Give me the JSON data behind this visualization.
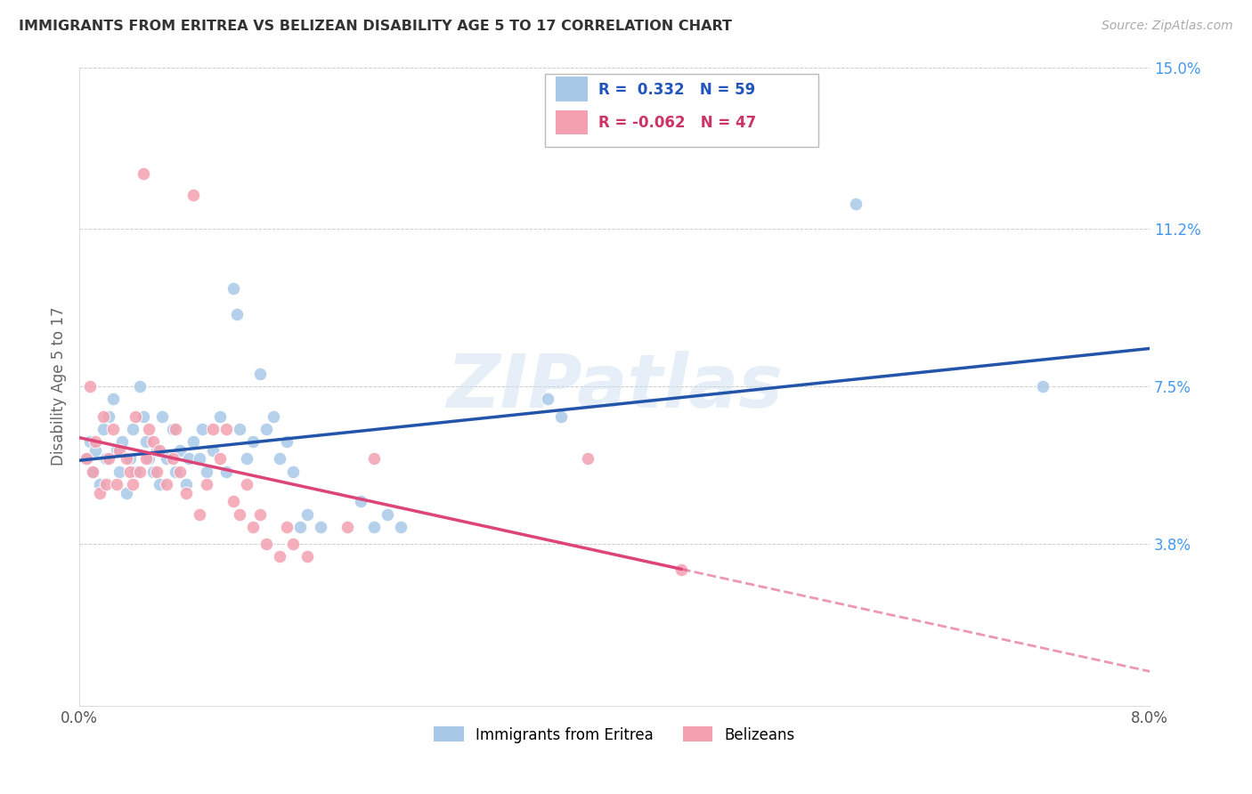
{
  "title": "IMMIGRANTS FROM ERITREA VS BELIZEAN DISABILITY AGE 5 TO 17 CORRELATION CHART",
  "source": "Source: ZipAtlas.com",
  "ylabel": "Disability Age 5 to 17",
  "xlim": [
    0.0,
    8.0
  ],
  "ylim": [
    0.0,
    15.0
  ],
  "ytick_labels_right": [
    "15.0%",
    "11.2%",
    "7.5%",
    "3.8%"
  ],
  "ytick_values_right": [
    15.0,
    11.2,
    7.5,
    3.8
  ],
  "blue_r": 0.332,
  "blue_n": 59,
  "pink_r": -0.062,
  "pink_n": 47,
  "watermark": "ZIPatlas",
  "blue_color": "#a8c8e8",
  "pink_color": "#f4a0b0",
  "line_blue": "#2255aa",
  "line_pink": "#dd4477",
  "blue_points": [
    [
      0.05,
      5.8
    ],
    [
      0.08,
      6.2
    ],
    [
      0.1,
      5.5
    ],
    [
      0.12,
      6.0
    ],
    [
      0.15,
      5.2
    ],
    [
      0.18,
      6.5
    ],
    [
      0.2,
      5.8
    ],
    [
      0.22,
      6.8
    ],
    [
      0.25,
      7.2
    ],
    [
      0.28,
      6.0
    ],
    [
      0.3,
      5.5
    ],
    [
      0.32,
      6.2
    ],
    [
      0.35,
      5.0
    ],
    [
      0.38,
      5.8
    ],
    [
      0.4,
      6.5
    ],
    [
      0.42,
      5.5
    ],
    [
      0.45,
      7.5
    ],
    [
      0.48,
      6.8
    ],
    [
      0.5,
      6.2
    ],
    [
      0.52,
      5.8
    ],
    [
      0.55,
      5.5
    ],
    [
      0.58,
      6.0
    ],
    [
      0.6,
      5.2
    ],
    [
      0.62,
      6.8
    ],
    [
      0.65,
      5.8
    ],
    [
      0.7,
      6.5
    ],
    [
      0.72,
      5.5
    ],
    [
      0.75,
      6.0
    ],
    [
      0.8,
      5.2
    ],
    [
      0.82,
      5.8
    ],
    [
      0.85,
      6.2
    ],
    [
      0.9,
      5.8
    ],
    [
      0.92,
      6.5
    ],
    [
      0.95,
      5.5
    ],
    [
      1.0,
      6.0
    ],
    [
      1.05,
      6.8
    ],
    [
      1.1,
      5.5
    ],
    [
      1.15,
      9.8
    ],
    [
      1.18,
      9.2
    ],
    [
      1.2,
      6.5
    ],
    [
      1.25,
      5.8
    ],
    [
      1.3,
      6.2
    ],
    [
      1.35,
      7.8
    ],
    [
      1.4,
      6.5
    ],
    [
      1.45,
      6.8
    ],
    [
      1.5,
      5.8
    ],
    [
      1.55,
      6.2
    ],
    [
      1.6,
      5.5
    ],
    [
      1.65,
      4.2
    ],
    [
      1.7,
      4.5
    ],
    [
      1.8,
      4.2
    ],
    [
      2.1,
      4.8
    ],
    [
      2.2,
      4.2
    ],
    [
      2.3,
      4.5
    ],
    [
      2.4,
      4.2
    ],
    [
      3.5,
      7.2
    ],
    [
      3.6,
      6.8
    ],
    [
      5.8,
      11.8
    ],
    [
      7.2,
      7.5
    ]
  ],
  "pink_points": [
    [
      0.05,
      5.8
    ],
    [
      0.08,
      7.5
    ],
    [
      0.1,
      5.5
    ],
    [
      0.12,
      6.2
    ],
    [
      0.15,
      5.0
    ],
    [
      0.18,
      6.8
    ],
    [
      0.2,
      5.2
    ],
    [
      0.22,
      5.8
    ],
    [
      0.25,
      6.5
    ],
    [
      0.28,
      5.2
    ],
    [
      0.3,
      6.0
    ],
    [
      0.35,
      5.8
    ],
    [
      0.38,
      5.5
    ],
    [
      0.4,
      5.2
    ],
    [
      0.42,
      6.8
    ],
    [
      0.45,
      5.5
    ],
    [
      0.48,
      12.5
    ],
    [
      0.5,
      5.8
    ],
    [
      0.52,
      6.5
    ],
    [
      0.55,
      6.2
    ],
    [
      0.58,
      5.5
    ],
    [
      0.6,
      6.0
    ],
    [
      0.65,
      5.2
    ],
    [
      0.7,
      5.8
    ],
    [
      0.72,
      6.5
    ],
    [
      0.75,
      5.5
    ],
    [
      0.8,
      5.0
    ],
    [
      0.85,
      12.0
    ],
    [
      0.9,
      4.5
    ],
    [
      0.95,
      5.2
    ],
    [
      1.0,
      6.5
    ],
    [
      1.05,
      5.8
    ],
    [
      1.1,
      6.5
    ],
    [
      1.15,
      4.8
    ],
    [
      1.2,
      4.5
    ],
    [
      1.25,
      5.2
    ],
    [
      1.3,
      4.2
    ],
    [
      1.35,
      4.5
    ],
    [
      1.4,
      3.8
    ],
    [
      1.5,
      3.5
    ],
    [
      1.55,
      4.2
    ],
    [
      1.6,
      3.8
    ],
    [
      1.7,
      3.5
    ],
    [
      2.0,
      4.2
    ],
    [
      2.2,
      5.8
    ],
    [
      3.8,
      5.8
    ],
    [
      4.5,
      3.2
    ]
  ]
}
